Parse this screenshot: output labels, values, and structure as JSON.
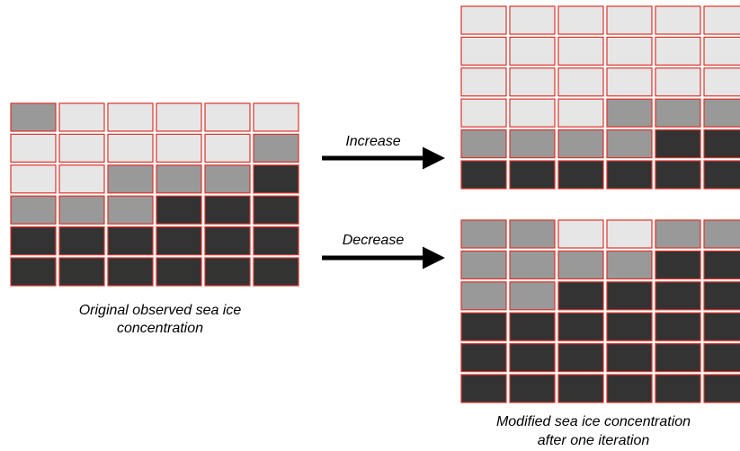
{
  "arrows": [
    {
      "label": "Increase"
    },
    {
      "label": "Decrease"
    }
  ],
  "captions": {
    "original": [
      "Original observed sea ice",
      "concentration"
    ],
    "modified": [
      "Modified sea ice concentration",
      "after one iteration"
    ]
  }
}
